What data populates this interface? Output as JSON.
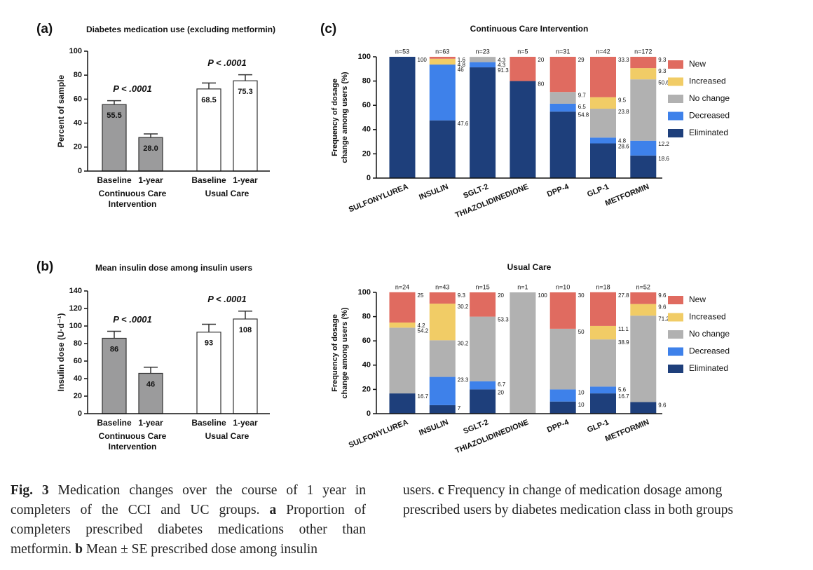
{
  "panel_labels": [
    "(a)",
    "(b)",
    "(c)"
  ],
  "chart_data": [
    {
      "type": "bar",
      "title": "Diabetes medication use (excluding metformin)",
      "ylabel": "Percent of sample",
      "categories": [
        "Baseline",
        "1-year",
        "Baseline",
        "1-year"
      ],
      "groups": [
        [
          "Continuous Care",
          "Intervention"
        ],
        [
          "Usual Care"
        ]
      ],
      "values": [
        55.5,
        28.0,
        68.5,
        75.3
      ],
      "value_labels": [
        "55.5",
        "28.0",
        "68.5",
        "75.3"
      ],
      "errors": [
        3.2,
        3,
        5,
        5
      ],
      "colors": [
        "#9b9b9c",
        "#9b9b9c",
        "#ffffff",
        "#ffffff"
      ],
      "annotations": [
        "P < .0001",
        "P < .0001"
      ],
      "ylim": [
        0,
        100
      ],
      "yticks": [
        0,
        20,
        40,
        60,
        80,
        100
      ]
    },
    {
      "type": "bar",
      "title": "Mean insulin dose among insulin users",
      "ylabel": "Insulin dose (U·d⁻¹)",
      "categories": [
        "Baseline",
        "1-year",
        "Baseline",
        "1-year"
      ],
      "groups": [
        [
          "Continuous Care",
          "Intervention"
        ],
        [
          "Usual Care"
        ]
      ],
      "values": [
        86,
        46,
        93,
        108
      ],
      "errors": [
        8,
        7,
        9,
        9
      ],
      "colors": [
        "#9b9b9c",
        "#9b9b9c",
        "#ffffff",
        "#ffffff"
      ],
      "annotations": [
        "P < .0001",
        "P < .0001"
      ],
      "ylim": [
        0,
        140
      ],
      "yticks": [
        0,
        20,
        40,
        60,
        80,
        100,
        120,
        140
      ]
    },
    {
      "type": "stacked_bar",
      "title": "Continuous Care Intervention",
      "ylabel": [
        "Frequency of dosage",
        "change among users (%)"
      ],
      "categories": [
        "SULFONYLUREA",
        "INSULIN",
        "SGLT-2",
        "THIAZOLIDINEDIONE",
        "DPP-4",
        "GLP-1",
        "METFORMIN"
      ],
      "n_labels": [
        "n=53",
        "n=63",
        "n=23",
        "n=5",
        "n=31",
        "n=42",
        "n=172"
      ],
      "series": [
        {
          "name": "Eliminated",
          "color": "#1e3f7b",
          "values": [
            100,
            47.6,
            91.3,
            80,
            54.8,
            28.6,
            18.6
          ]
        },
        {
          "name": "Decreased",
          "color": "#3e81ea",
          "values": [
            0,
            46,
            4.3,
            0,
            6.5,
            4.8,
            12.2
          ]
        },
        {
          "name": "No change",
          "color": "#b1b1b1",
          "values": [
            0,
            0,
            4.3,
            0,
            9.7,
            23.8,
            50.6
          ]
        },
        {
          "name": "Increased",
          "color": "#f1cc66",
          "values": [
            0,
            4.8,
            0,
            0,
            0,
            9.5,
            9.3
          ]
        },
        {
          "name": "New",
          "color": "#e06b60",
          "values": [
            0,
            1.6,
            0,
            20,
            29,
            33.3,
            9.3
          ]
        }
      ],
      "ylim": [
        0,
        100
      ],
      "yticks": [
        0,
        20,
        40,
        60,
        80,
        100
      ]
    },
    {
      "type": "stacked_bar",
      "title": "Usual Care",
      "ylabel": [
        "Frequency of dosage",
        "change among users (%)"
      ],
      "categories": [
        "SULFONYLUREA",
        "INSULIN",
        "SGLT-2",
        "THIAZOLIDINEDIONE",
        "DPP-4",
        "GLP-1",
        "METFORMIN"
      ],
      "n_labels": [
        "n=24",
        "n=43",
        "n=15",
        "n=1",
        "n=10",
        "n=18",
        "n=52"
      ],
      "series": [
        {
          "name": "Eliminated",
          "color": "#1e3f7b",
          "values": [
            16.7,
            7,
            20,
            0,
            10,
            16.7,
            9.6
          ]
        },
        {
          "name": "Decreased",
          "color": "#3e81ea",
          "values": [
            0,
            23.3,
            6.7,
            0,
            10,
            5.6,
            0
          ]
        },
        {
          "name": "No change",
          "color": "#b1b1b1",
          "values": [
            54.2,
            30.2,
            53.3,
            100,
            50,
            38.9,
            71.2
          ]
        },
        {
          "name": "Increased",
          "color": "#f1cc66",
          "values": [
            4.2,
            30.2,
            0,
            0,
            0,
            11.1,
            9.6
          ]
        },
        {
          "name": "New",
          "color": "#e06b60",
          "values": [
            25,
            9.3,
            20,
            0,
            30,
            27.8,
            9.6
          ]
        }
      ],
      "ylim": [
        0,
        100
      ],
      "yticks": [
        0,
        20,
        40,
        60,
        80,
        100
      ]
    }
  ],
  "caption": {
    "left": [
      {
        "text": "Fig. 3",
        "bold": true
      },
      {
        "text": " Medication changes over the course of 1 year in completers of the CCI and UC groups. "
      },
      {
        "text": "a",
        "bold": true
      },
      {
        "text": " Proportion of completers prescribed diabetes medications other than metformin. "
      },
      {
        "text": "b",
        "bold": true
      },
      {
        "text": " Mean ± SE prescribed dose among insulin"
      }
    ],
    "right": [
      {
        "text": "users. "
      },
      {
        "text": "c",
        "bold": true
      },
      {
        "text": " Frequency in change of medication dosage among prescribed users by diabetes medication class in both groups"
      }
    ]
  }
}
